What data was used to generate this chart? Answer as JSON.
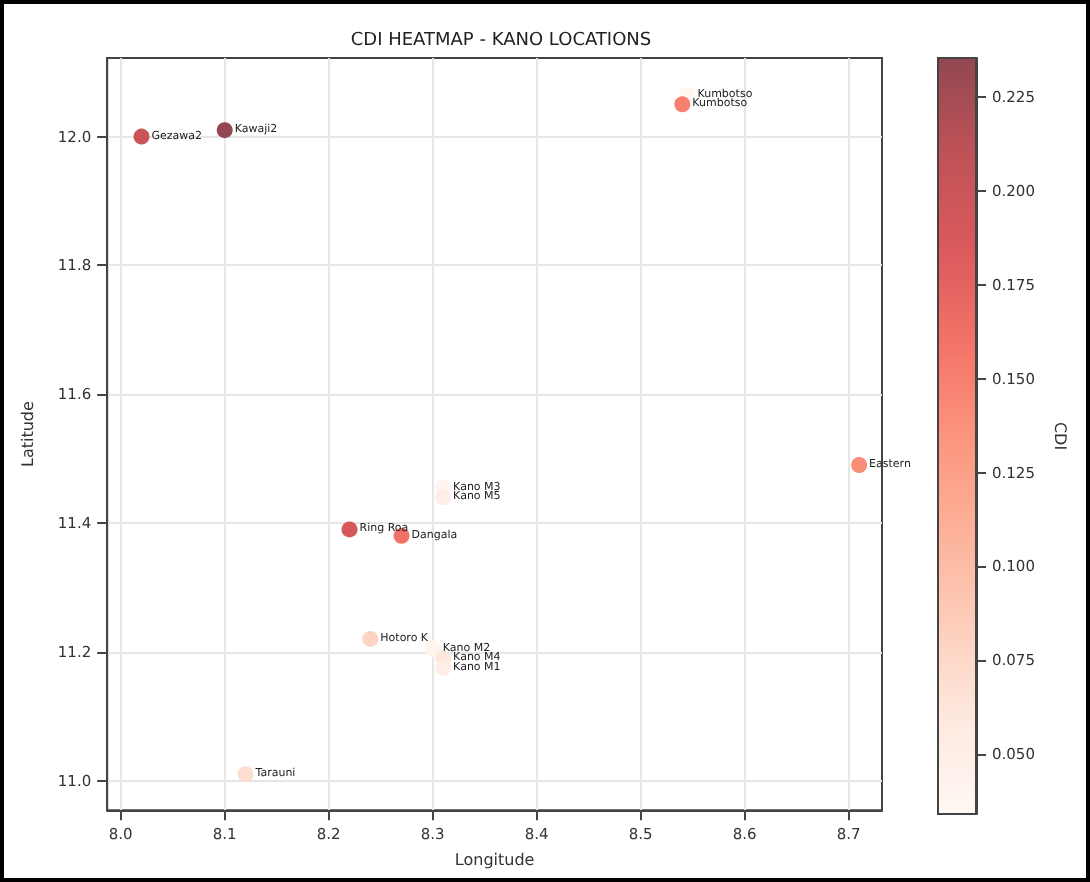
{
  "chart_data": {
    "type": "scatter",
    "title": "CDI HEATMAP - KANO LOCATIONS",
    "xlabel": "Longitude",
    "ylabel": "Latitude",
    "clabel": "CDI",
    "xlim": [
      7.987,
      8.732
    ],
    "ylim": [
      10.954,
      12.122
    ],
    "xticks": [
      {
        "value": 8.0,
        "label": "8.0"
      },
      8.1,
      8.2,
      8.3,
      8.4,
      8.5,
      8.6,
      8.7
    ],
    "yticks": [
      {
        "value": 11.0,
        "label": "11.0"
      },
      11.2,
      11.4,
      11.6,
      11.8,
      {
        "value": 12.0,
        "label": "12.0"
      }
    ],
    "clim": [
      0.034,
      0.2355
    ],
    "cticks": [
      {
        "value": 0.05,
        "label": "0.050"
      },
      0.075,
      {
        "value": 0.1,
        "label": "0.100"
      },
      0.125,
      {
        "value": 0.15,
        "label": "0.150"
      },
      0.175,
      {
        "value": 0.2,
        "label": "0.200"
      },
      0.225
    ],
    "grid": true,
    "marker": "circle",
    "series": [
      {
        "x": [
          8.02,
          8.1,
          8.545,
          8.54,
          8.71,
          8.31,
          8.31,
          8.22,
          8.27,
          8.24,
          8.3,
          8.31,
          8.31,
          8.12
        ],
        "values": [
          12.0,
          12.01,
          12.065,
          12.05,
          11.49,
          11.455,
          11.44,
          11.39,
          11.38,
          11.22,
          11.205,
          11.19,
          11.175,
          11.01
        ],
        "cvalues": [
          0.2,
          0.235,
          0.035,
          0.15,
          0.14,
          0.04,
          0.05,
          0.19,
          0.16,
          0.08,
          0.04,
          0.06,
          0.05,
          0.07
        ],
        "value_labels": [
          "Gezawa2",
          "Kawaji2",
          "Kumbotso",
          "Kumbotso",
          "Eastern",
          "Kano M3",
          "Kano M5",
          "Ring Roa",
          "Dangala",
          "Hotoro K",
          "Kano M2",
          "Kano M4",
          "Kano M1",
          "Tarauni"
        ]
      }
    ]
  }
}
